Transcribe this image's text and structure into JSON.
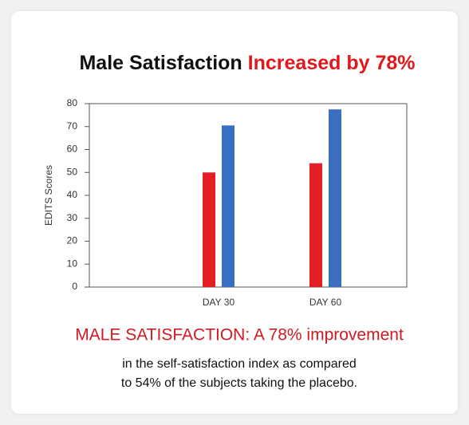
{
  "chart_data": {
    "type": "bar",
    "title": "Male Satisfaction",
    "title_highlight": "Increased by 78%",
    "y_label": "EDITS Scores",
    "categories": [
      "DAY 30",
      "DAY 60"
    ],
    "series": [
      {
        "color": "#e31e24",
        "values": [
          50,
          54
        ]
      },
      {
        "color": "#3a6fbf",
        "values": [
          70.5,
          77.5
        ]
      }
    ],
    "ylim": [
      0,
      80
    ],
    "yticks": [
      0,
      10,
      20,
      30,
      40,
      50,
      60,
      70,
      80
    ],
    "subtitle": "MALE SATISFACTION: A 78% improvement",
    "description_lines": [
      "in the self-satisfaction index as compared",
      "to 54% of the subjects taking the placebo."
    ]
  }
}
